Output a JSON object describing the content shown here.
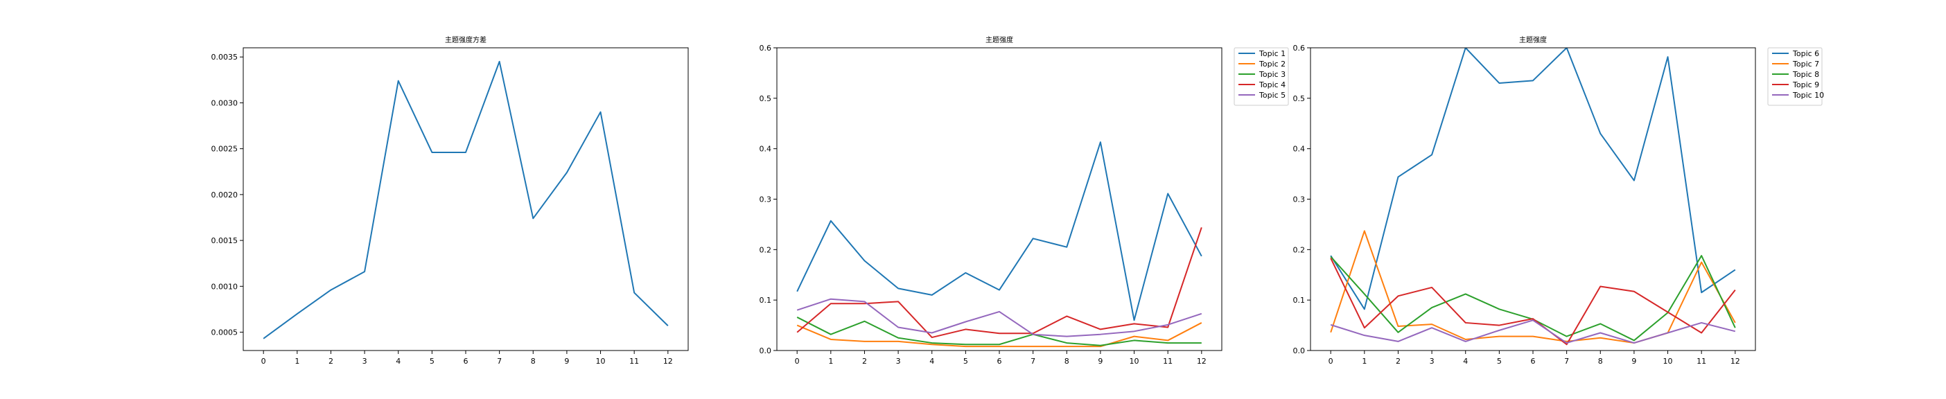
{
  "chart_data": [
    {
      "type": "line",
      "title": "主题强度方差",
      "x": [
        0,
        1,
        2,
        3,
        4,
        5,
        6,
        7,
        8,
        9,
        10,
        11,
        12
      ],
      "ylim": [
        0.0003,
        0.0036
      ],
      "yticks": [
        0.0005,
        0.001,
        0.0015,
        0.002,
        0.0025,
        0.003,
        0.0035
      ],
      "ytick_labels": [
        "0.0005",
        "0.0010",
        "0.0015",
        "0.0020",
        "0.0025",
        "0.0030",
        "0.0035"
      ],
      "legend": false,
      "series": [
        {
          "color": "#1f77b4",
          "values": [
            0.00043,
            0.0007,
            0.00096,
            0.00116,
            0.00324,
            0.00246,
            0.00246,
            0.00345,
            0.00174,
            0.00224,
            0.0029,
            0.00093,
            0.00057
          ]
        }
      ]
    },
    {
      "type": "line",
      "title": "主题强度",
      "x": [
        0,
        1,
        2,
        3,
        4,
        5,
        6,
        7,
        8,
        9,
        10,
        11,
        12
      ],
      "ylim": [
        0,
        0.6
      ],
      "yticks": [
        0.0,
        0.1,
        0.2,
        0.3,
        0.4,
        0.5,
        0.6
      ],
      "ytick_labels": [
        "0.0",
        "0.1",
        "0.2",
        "0.3",
        "0.4",
        "0.5",
        "0.6"
      ],
      "legend": true,
      "legend_position": "outside-right",
      "series": [
        {
          "name": "Topic 1",
          "color": "#1f77b4",
          "values": [
            0.117,
            0.257,
            0.178,
            0.123,
            0.11,
            0.154,
            0.12,
            0.222,
            0.205,
            0.413,
            0.06,
            0.311,
            0.187
          ]
        },
        {
          "name": "Topic 2",
          "color": "#ff7f0e",
          "values": [
            0.05,
            0.022,
            0.018,
            0.018,
            0.012,
            0.008,
            0.008,
            0.008,
            0.008,
            0.008,
            0.028,
            0.02,
            0.055
          ]
        },
        {
          "name": "Topic 3",
          "color": "#2ca02c",
          "values": [
            0.066,
            0.032,
            0.058,
            0.025,
            0.015,
            0.012,
            0.012,
            0.032,
            0.015,
            0.01,
            0.02,
            0.015,
            0.015
          ]
        },
        {
          "name": "Topic 4",
          "color": "#d62728",
          "values": [
            0.036,
            0.093,
            0.093,
            0.097,
            0.026,
            0.042,
            0.034,
            0.034,
            0.068,
            0.042,
            0.053,
            0.046,
            0.244
          ]
        },
        {
          "name": "Topic 5",
          "color": "#9467bd",
          "values": [
            0.08,
            0.102,
            0.097,
            0.046,
            0.035,
            0.057,
            0.077,
            0.032,
            0.028,
            0.032,
            0.038,
            0.051,
            0.073
          ]
        }
      ]
    },
    {
      "type": "line",
      "title": "主题强度",
      "x": [
        0,
        1,
        2,
        3,
        4,
        5,
        6,
        7,
        8,
        9,
        10,
        11,
        12
      ],
      "ylim": [
        0,
        0.6
      ],
      "yticks": [
        0.0,
        0.1,
        0.2,
        0.3,
        0.4,
        0.5,
        0.6
      ],
      "ytick_labels": [
        "0.0",
        "0.1",
        "0.2",
        "0.3",
        "0.4",
        "0.5",
        "0.6"
      ],
      "legend": true,
      "legend_position": "outside-right",
      "series": [
        {
          "name": "Topic 6",
          "color": "#1f77b4",
          "values": [
            0.188,
            0.082,
            0.344,
            0.388,
            0.6,
            0.53,
            0.535,
            0.6,
            0.43,
            0.337,
            0.582,
            0.115,
            0.16
          ]
        },
        {
          "name": "Topic 7",
          "color": "#ff7f0e",
          "values": [
            0.036,
            0.237,
            0.048,
            0.052,
            0.022,
            0.028,
            0.028,
            0.018,
            0.025,
            0.015,
            0.035,
            0.175,
            0.055
          ]
        },
        {
          "name": "Topic 8",
          "color": "#2ca02c",
          "values": [
            0.186,
            0.112,
            0.036,
            0.085,
            0.112,
            0.082,
            0.062,
            0.028,
            0.053,
            0.02,
            0.075,
            0.188,
            0.045
          ]
        },
        {
          "name": "Topic 9",
          "color": "#d62728",
          "values": [
            0.183,
            0.045,
            0.108,
            0.125,
            0.055,
            0.05,
            0.063,
            0.012,
            0.127,
            0.117,
            0.076,
            0.035,
            0.12
          ]
        },
        {
          "name": "Topic 10",
          "color": "#9467bd",
          "values": [
            0.051,
            0.03,
            0.018,
            0.045,
            0.018,
            0.04,
            0.06,
            0.015,
            0.035,
            0.015,
            0.035,
            0.055,
            0.038
          ]
        }
      ]
    }
  ]
}
